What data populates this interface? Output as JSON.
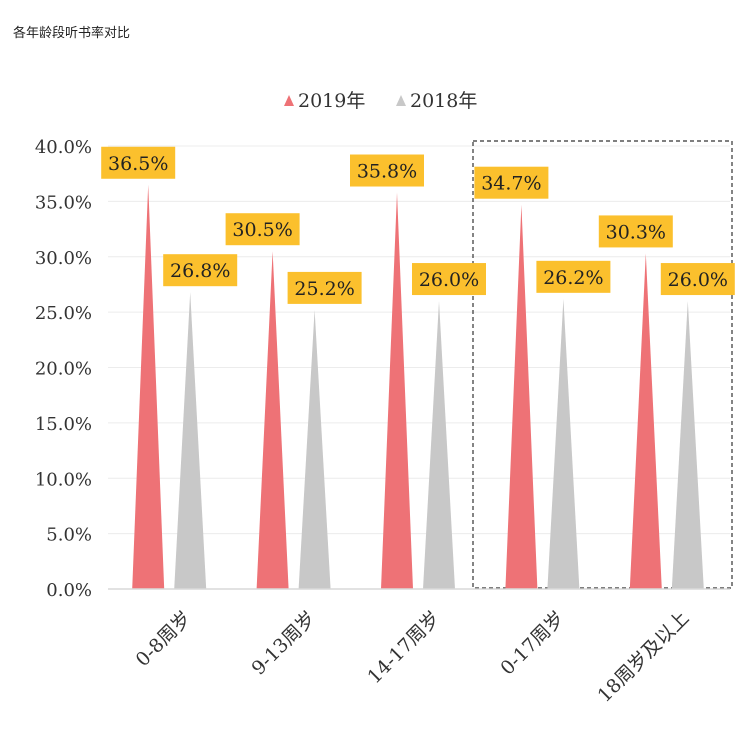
{
  "page": {
    "title": "各年龄段听书率对比"
  },
  "colors": {
    "2019": "#ee7276",
    "2018": "#c8c8c8",
    "label_bg": "#fbc02d"
  },
  "chart_data": {
    "type": "bar",
    "mark": "triangle",
    "title": "",
    "xlabel": "",
    "ylabel": "",
    "ylim": [
      0,
      40
    ],
    "ytick_labels": [
      "0.0%",
      "5.0%",
      "10.0%",
      "15.0%",
      "20.0%",
      "25.0%",
      "30.0%",
      "35.0%",
      "40.0%"
    ],
    "categories": [
      "0-8周岁",
      "9-13周岁",
      "14-17周岁",
      "0-17周岁",
      "18周岁及以上"
    ],
    "series": [
      {
        "name": "2019年",
        "values": [
          36.5,
          30.5,
          35.8,
          34.7,
          30.3
        ],
        "labels": [
          "36.5%",
          "30.5%",
          "35.8%",
          "34.7%",
          "30.3%"
        ]
      },
      {
        "name": "2018年",
        "values": [
          26.8,
          25.2,
          26.0,
          26.2,
          26.0
        ],
        "labels": [
          "26.8%",
          "25.2%",
          "26.0%",
          "26.2%",
          "26.0%"
        ]
      }
    ],
    "legend_position": "top",
    "grid": true,
    "highlight": "dashed box around 0-17周岁 and 18周岁及以上"
  }
}
